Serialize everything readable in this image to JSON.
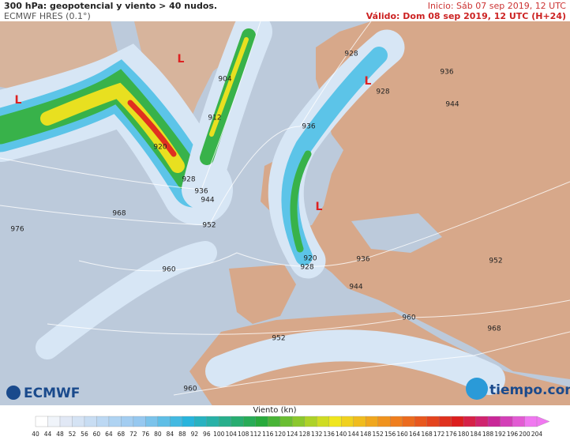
{
  "header": {
    "title": "300 hPa: geopotencial y viento > 40 nudos.",
    "model": "ECMWF HRES (0.1°)",
    "init": "Inicio: Sáb 07 sep 2019, 12 UTC",
    "valid": "Válido: Dom 08 sep 2019, 12 UTC (H+24)"
  },
  "map": {
    "contour_labels": [
      920,
      928,
      936,
      944,
      952,
      960,
      968,
      976,
      904,
      912,
      936,
      928,
      928,
      936,
      944,
      920,
      928,
      936,
      944,
      952,
      960,
      968,
      952,
      960
    ],
    "lows": [
      "L",
      "L",
      "L",
      "L"
    ]
  },
  "legend": {
    "title": "Viento (kn)",
    "ticks": [
      40,
      44,
      48,
      52,
      56,
      60,
      64,
      68,
      72,
      76,
      80,
      84,
      88,
      92,
      96,
      100,
      104,
      108,
      112,
      116,
      120,
      124,
      128,
      132,
      136,
      140,
      144,
      148,
      152,
      156,
      160,
      164,
      168,
      172,
      176,
      180,
      184,
      188,
      192,
      196,
      200,
      204
    ]
  },
  "logos": {
    "left": "ECMWF",
    "right": "tiempo.com"
  }
}
